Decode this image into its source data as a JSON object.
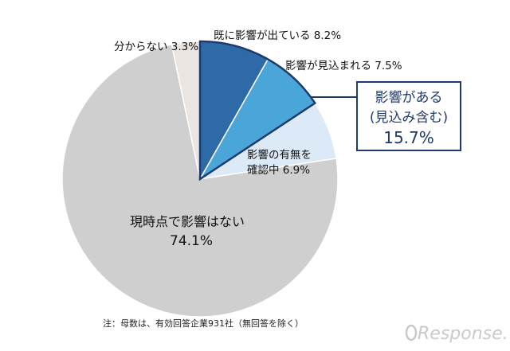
{
  "chart_data": {
    "type": "pie",
    "slices": [
      {
        "label_lines": [
          "既に影響が出ている 8.2%"
        ],
        "value": 8.2,
        "color": "#2e6aa8"
      },
      {
        "label_lines": [
          "影響が見込まれる 7.5%"
        ],
        "value": 7.5,
        "color": "#4aa6d8"
      },
      {
        "label_lines": [
          "影響の有無を",
          "確認中 6.9%"
        ],
        "value": 6.9,
        "color": "#dce9f6"
      },
      {
        "label_lines": [
          "現時点で影響はない",
          "74.1%"
        ],
        "value": 74.1,
        "color": "#cfcfcf"
      },
      {
        "label_lines": [
          "分からない 3.3%"
        ],
        "value": 3.3,
        "color": "#ebe5e2"
      }
    ],
    "callout": {
      "lines": [
        "影響がある",
        "(見込み含む)"
      ],
      "value_text": "15.7%",
      "color": "#1f3b6e"
    },
    "note": "注：母数は、有効回答企業931社（無回答を除く）"
  },
  "watermark": "Response."
}
